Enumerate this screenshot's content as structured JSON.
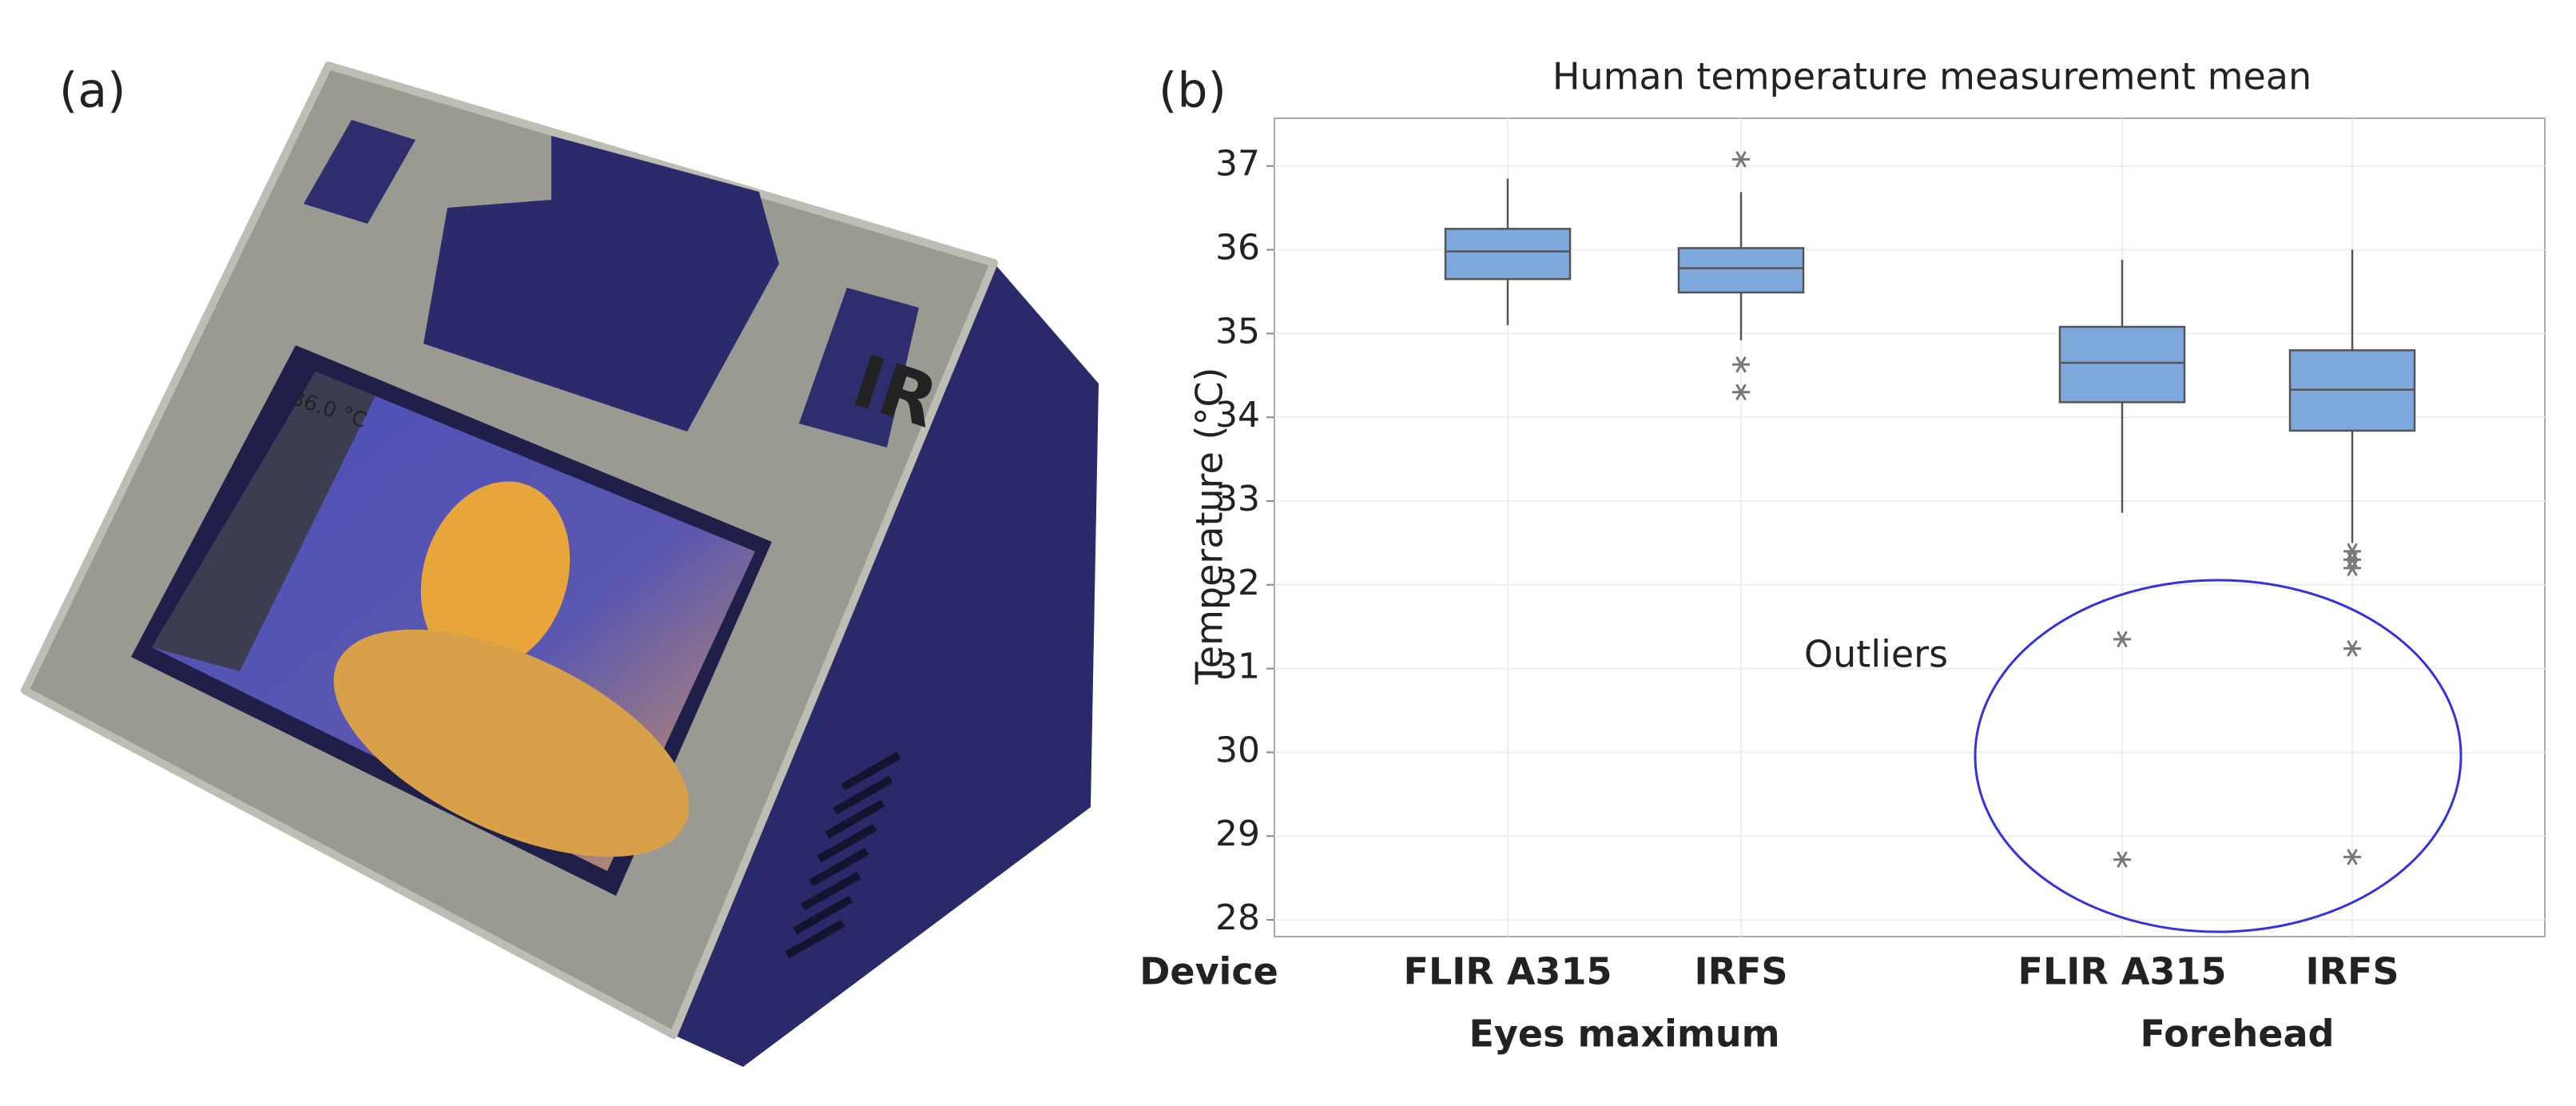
{
  "panel_a": {
    "label": "(a)",
    "screen_text": "36.0 °C",
    "device_logo": "IR"
  },
  "chart_data": {
    "type": "box",
    "panel_label": "(b)",
    "title": "Human temperature measurement mean",
    "y_label": "Temperature (°C)",
    "x_label": "Device",
    "annotation": "Outliers",
    "color": "#7ea7dc",
    "outlier_color": "#777777",
    "annotation_color": "#3333dd",
    "grid": true,
    "ylim": [
      27.8,
      37.57
    ],
    "yticks": [
      28,
      29,
      30,
      31,
      32,
      33,
      34,
      35,
      36,
      37
    ],
    "groups": [
      {
        "name": "Eyes maximum",
        "boxes": [
          {
            "category": "FLIR A315",
            "whisker_low": 35.1,
            "q1": 35.65,
            "median": 35.98,
            "q3": 36.25,
            "whisker_high": 36.85,
            "outliers": []
          },
          {
            "category": "IRFS",
            "whisker_low": 34.92,
            "q1": 35.49,
            "median": 35.78,
            "q3": 36.02,
            "whisker_high": 36.69,
            "outliers": [
              37.08,
              34.63,
              34.3
            ]
          }
        ]
      },
      {
        "name": "Forehead",
        "boxes": [
          {
            "category": "FLIR A315",
            "whisker_low": 32.86,
            "q1": 34.18,
            "median": 34.65,
            "q3": 35.08,
            "whisker_high": 35.88,
            "outliers": [
              31.35,
              28.72
            ]
          },
          {
            "category": "IRFS",
            "whisker_low": 32.5,
            "q1": 33.84,
            "median": 34.33,
            "q3": 34.8,
            "whisker_high": 36.0,
            "outliers": [
              32.4,
              32.3,
              32.2,
              31.24,
              28.75
            ]
          }
        ]
      }
    ]
  }
}
